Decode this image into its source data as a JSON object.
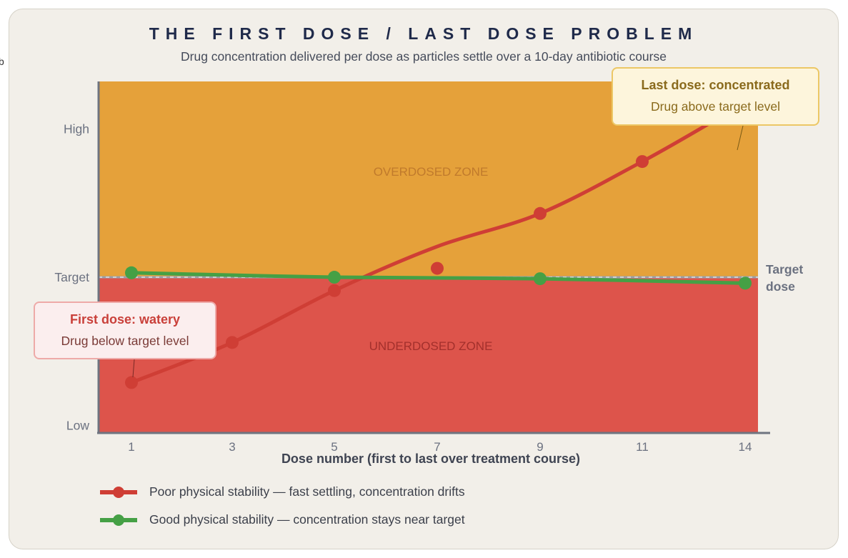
{
  "fragment": "b",
  "title": "THE FIRST DOSE / LAST DOSE PROBLEM",
  "subtitle": "Drug concentration delivered per dose as particles settle over a 10-day antibiotic course",
  "chart_data": {
    "type": "line",
    "xlabel": "Dose number (first to last over treatment course)",
    "x_ticks": [
      "1",
      "3",
      "5",
      "7",
      "9",
      "11",
      "14"
    ],
    "y_ticks": [
      {
        "label": "Low",
        "value": 0
      },
      {
        "label": "Target",
        "value": 1
      },
      {
        "label": "High",
        "value": 2
      }
    ],
    "ylim": [
      -0.05,
      2.32
    ],
    "zones": [
      {
        "name": "OVERDOSED ZONE",
        "from": 1,
        "to": 2.32,
        "color": "#e5a13a"
      },
      {
        "name": "UNDERDOSED ZONE",
        "from": -0.05,
        "to": 1,
        "color": "#dd544b"
      }
    ],
    "target_line": {
      "value": 1,
      "label": "Target dose"
    },
    "series": [
      {
        "name": "Poor physical stability — fast settling, concentration drifts",
        "color": "#cf3e35",
        "points": [
          [
            1,
            0.29
          ],
          [
            3,
            0.56
          ],
          [
            5,
            0.91
          ],
          [
            7,
            1.06
          ],
          [
            9,
            1.43
          ],
          [
            11,
            1.78
          ]
        ]
      },
      {
        "name": "Good physical stability — concentration stays near target",
        "color": "#45a045",
        "points": [
          [
            1,
            1.03
          ],
          [
            5,
            1.0
          ],
          [
            9,
            0.99
          ],
          [
            14,
            0.96
          ]
        ]
      }
    ],
    "annotations": [
      {
        "title": "First dose: watery",
        "text": "Drug below target level",
        "dose": 1
      },
      {
        "title": "Last dose: concentrated",
        "text": "Drug above target level",
        "dose": 14
      }
    ],
    "grid": false,
    "legend_position": "bottom-left"
  }
}
